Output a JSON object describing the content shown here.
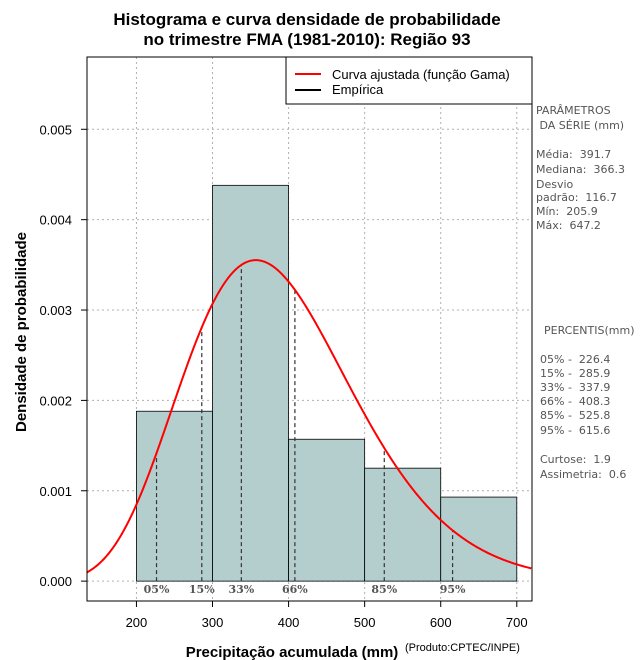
{
  "chart_data": {
    "type": "bar",
    "title_lines": [
      "Histograma e curva densidade de probabilidade",
      "no trimestre FMA (1981-2010): Região 93"
    ],
    "xlabel": "Precipitação acumulada (mm)",
    "ylabel": "Densidade de probabilidade",
    "credit": "(Produto:CPTEC/INPE)",
    "xlim": [
      135,
      720
    ],
    "ylim": [
      -0.00022,
      0.0058
    ],
    "x_ticks": [
      200,
      300,
      400,
      500,
      600,
      700
    ],
    "x_tick_labels": [
      "200",
      "300",
      "400",
      "500",
      "600",
      "700"
    ],
    "y_ticks": [
      0,
      0.001,
      0.002,
      0.003,
      0.004,
      0.005
    ],
    "y_tick_labels": [
      "0.000",
      "0.001",
      "0.002",
      "0.003",
      "0.004",
      "0.005"
    ],
    "grid": true,
    "bars": [
      {
        "x0": 200,
        "x1": 300,
        "density": 0.00188
      },
      {
        "x0": 300,
        "x1": 400,
        "density": 0.00438
      },
      {
        "x0": 400,
        "x1": 500,
        "density": 0.00157
      },
      {
        "x0": 500,
        "x1": 600,
        "density": 0.00125
      },
      {
        "x0": 600,
        "x1": 700,
        "density": 0.00093
      }
    ],
    "bar_color": "#b4cece",
    "curve": {
      "name": "Curva ajustada (função Gama)",
      "color": "#ff0000",
      "dist": "gamma",
      "mean": 391.7,
      "sd": 116.7
    },
    "empirical": {
      "name": "Empírica",
      "color": "#000000"
    },
    "legend": {
      "position": "top-right",
      "entries": [
        {
          "label": "Curva ajustada (função Gama)",
          "color": "#ff0000"
        },
        {
          "label": "Empírica",
          "color": "#000000"
        }
      ]
    },
    "percentiles": [
      {
        "label": "05%",
        "value": 226.4
      },
      {
        "label": "15%",
        "value": 285.9
      },
      {
        "label": "33%",
        "value": 337.9
      },
      {
        "label": "66%",
        "value": 408.3
      },
      {
        "label": "85%",
        "value": 525.8
      },
      {
        "label": "95%",
        "value": 615.6
      }
    ]
  },
  "side_panel": {
    "params_title": [
      "PARÂMETROS",
      " DA SÉRIE (mm)"
    ],
    "params": [
      "Média:  391.7",
      "Mediana:  366.3",
      "Desvio",
      "padrão:  116.7",
      "Mín:  205.9",
      "Máx:  647.2"
    ],
    "percentis_title": "PERCENTIS(mm)",
    "percentis": [
      "05% -  226.4",
      "15% -  285.9",
      "33% -  337.9",
      "66% -  408.3",
      "85% -  525.8",
      "95% -  615.6"
    ],
    "stats": [
      "Curtose:  1.9",
      "Assimetria:  0.6"
    ]
  }
}
